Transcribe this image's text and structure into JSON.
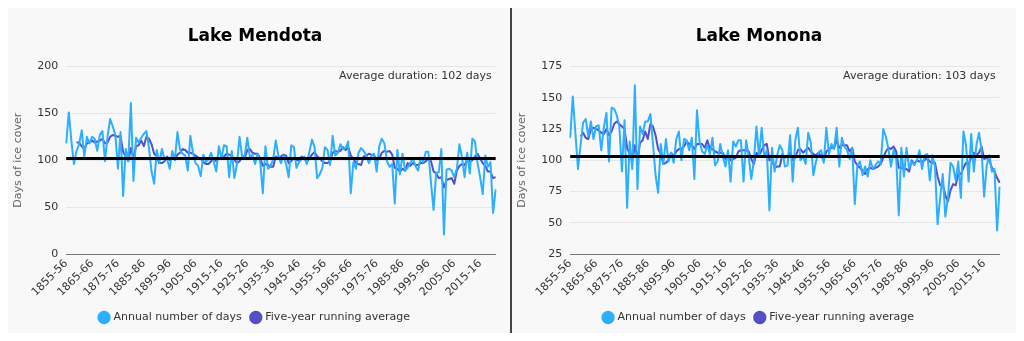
{
  "chart_data": [
    {
      "type": "line",
      "title": "Lake Mendota",
      "ylabel": "Days of ice cover",
      "ylim": [
        0,
        200
      ],
      "yticks": [
        0,
        50,
        100,
        150,
        200
      ],
      "grid": "y",
      "legend": "bottom",
      "categories": [
        "1855-56",
        null,
        null,
        null,
        null,
        null,
        null,
        null,
        null,
        null,
        "1865-66",
        null,
        null,
        null,
        null,
        null,
        null,
        null,
        null,
        null,
        "1875-76",
        null,
        null,
        null,
        null,
        null,
        null,
        null,
        null,
        null,
        "1885-86",
        null,
        null,
        null,
        null,
        null,
        null,
        null,
        null,
        null,
        "1895-96",
        null,
        null,
        null,
        null,
        null,
        null,
        null,
        null,
        null,
        "1905-06",
        null,
        null,
        null,
        null,
        null,
        null,
        null,
        null,
        null,
        "1915-16",
        null,
        null,
        null,
        null,
        null,
        null,
        null,
        null,
        null,
        "1925-26",
        null,
        null,
        null,
        null,
        null,
        null,
        null,
        null,
        null,
        "1935-36",
        null,
        null,
        null,
        null,
        null,
        null,
        null,
        null,
        null,
        "1945-46",
        null,
        null,
        null,
        null,
        null,
        null,
        null,
        null,
        null,
        "1955-56",
        null,
        null,
        null,
        null,
        null,
        null,
        null,
        null,
        null,
        "1965-66",
        null,
        null,
        null,
        null,
        null,
        null,
        null,
        null,
        null,
        "1975-76",
        null,
        null,
        null,
        null,
        null,
        null,
        null,
        null,
        null,
        "1985-86",
        null,
        null,
        null,
        null,
        null,
        null,
        null,
        null,
        null,
        "1995-96",
        null,
        null,
        null,
        null,
        null,
        null,
        null,
        null,
        null,
        "2005-06",
        null,
        null,
        null,
        null,
        null,
        null,
        null,
        null,
        null,
        "2015-16",
        null,
        null,
        null,
        null,
        null,
        null
      ],
      "series": [
        {
          "name": "Annual number of days",
          "color": "#2caffe",
          "values": [
            118,
            151,
            121,
            96,
            110,
            117,
            132,
            104,
            125,
            118,
            125,
            123,
            110,
            127,
            131,
            99,
            126,
            144,
            136,
            127,
            91,
            130,
            62,
            112,
            99,
            161,
            78,
            124,
            119,
            124,
            128,
            131,
            113,
            88,
            75,
            111,
            97,
            112,
            101,
            101,
            91,
            110,
            100,
            130,
            111,
            107,
            105,
            89,
            126,
            108,
            97,
            94,
            83,
            106,
            98,
            101,
            108,
            99,
            88,
            115,
            102,
            116,
            115,
            82,
            110,
            81,
            96,
            125,
            104,
            105,
            124,
            103,
            106,
            96,
            107,
            98,
            65,
            115,
            91,
            94,
            101,
            121,
            105,
            97,
            105,
            96,
            82,
            116,
            114,
            92,
            98,
            101,
            104,
            96,
            109,
            122,
            114,
            81,
            85,
            92,
            114,
            111,
            95,
            126,
            105,
            108,
            117,
            112,
            113,
            120,
            65,
            98,
            91,
            108,
            113,
            110,
            105,
            97,
            105,
            107,
            88,
            115,
            123,
            118,
            99,
            93,
            96,
            54,
            111,
            85,
            107,
            89,
            92,
            97,
            102,
            94,
            89,
            103,
            98,
            109,
            109,
            76,
            47,
            87,
            87,
            112,
            21,
            90,
            91,
            89,
            82,
            91,
            117,
            103,
            82,
            108,
            86,
            123,
            120,
            97,
            82,
            64,
            105,
            93,
            98,
            44,
            69
          ]
        },
        {
          "name": "Five-year running average",
          "color": "#544fc5",
          "values": [
            null,
            null,
            null,
            null,
            119,
            119,
            115,
            112,
            118,
            119,
            121,
            119,
            120,
            121,
            123,
            118,
            119,
            125,
            127,
            126,
            125,
            126,
            109,
            104,
            99,
            113,
            102,
            115,
            116,
            121,
            115,
            125,
            123,
            117,
            107,
            104,
            97,
            97,
            99,
            104,
            100,
            103,
            101,
            106,
            108,
            112,
            111,
            108,
            108,
            107,
            105,
            103,
            102,
            98,
            96,
            96,
            99,
            102,
            99,
            102,
            102,
            104,
            107,
            106,
            105,
            101,
            97,
            99,
            103,
            102,
            111,
            112,
            108,
            107,
            107,
            102,
            94,
            96,
            95,
            93,
            93,
            104,
            102,
            104,
            106,
            105,
            97,
            99,
            103,
            100,
            100,
            104,
            102,
            98,
            102,
            106,
            109,
            104,
            102,
            99,
            97,
            97,
            99,
            108,
            110,
            109,
            110,
            114,
            111,
            114,
            105,
            102,
            97,
            96,
            95,
            104,
            105,
            107,
            106,
            105,
            100,
            102,
            108,
            110,
            109,
            110,
            106,
            92,
            91,
            88,
            91,
            89,
            97,
            94,
            97,
            95,
            95,
            97,
            97,
            99,
            102,
            99,
            88,
            86,
            81,
            82,
            71,
            79,
            80,
            81,
            75,
            89,
            94,
            96,
            95,
            100,
            99,
            100,
            104,
            107,
            102,
            97,
            94,
            88,
            88,
            81,
            82
          ]
        }
      ],
      "ref_lines": [
        {
          "axis": "y",
          "value": 102,
          "color": "#000000"
        }
      ],
      "annotations": [
        "Average duration: 102 days"
      ]
    },
    {
      "type": "line",
      "title": "Lake Monona",
      "ylabel": "Days of ice cover",
      "ylim": [
        25,
        175
      ],
      "yticks": [
        25,
        50,
        75,
        100,
        125,
        150,
        175
      ],
      "grid": "y",
      "legend": "bottom",
      "categories": [
        "1855-56",
        null,
        null,
        null,
        null,
        null,
        null,
        null,
        null,
        null,
        "1865-66",
        null,
        null,
        null,
        null,
        null,
        null,
        null,
        null,
        null,
        "1875-76",
        null,
        null,
        null,
        null,
        null,
        null,
        null,
        null,
        null,
        "1885-86",
        null,
        null,
        null,
        null,
        null,
        null,
        null,
        null,
        null,
        "1895-96",
        null,
        null,
        null,
        null,
        null,
        null,
        null,
        null,
        null,
        "1905-06",
        null,
        null,
        null,
        null,
        null,
        null,
        null,
        null,
        null,
        "1915-16",
        null,
        null,
        null,
        null,
        null,
        null,
        null,
        null,
        null,
        "1925-26",
        null,
        null,
        null,
        null,
        null,
        null,
        null,
        null,
        null,
        "1935-36",
        null,
        null,
        null,
        null,
        null,
        null,
        null,
        null,
        null,
        "1945-46",
        null,
        null,
        null,
        null,
        null,
        null,
        null,
        null,
        null,
        "1955-56",
        null,
        null,
        null,
        null,
        null,
        null,
        null,
        null,
        null,
        "1965-66",
        null,
        null,
        null,
        null,
        null,
        null,
        null,
        null,
        null,
        "1975-76",
        null,
        null,
        null,
        null,
        null,
        null,
        null,
        null,
        null,
        "1985-86",
        null,
        null,
        null,
        null,
        null,
        null,
        null,
        null,
        null,
        "1995-96",
        null,
        null,
        null,
        null,
        null,
        null,
        null,
        null,
        null,
        "2005-06",
        null,
        null,
        null,
        null,
        null,
        null,
        null,
        null,
        null,
        "2015-16",
        null,
        null,
        null,
        null,
        null,
        null
      ],
      "series": [
        {
          "name": "Annual number of days",
          "color": "#2caffe",
          "values": [
            118,
            151,
            122,
            93,
            112,
            130,
            133,
            119,
            131,
            117,
            127,
            128,
            108,
            126,
            138,
            99,
            142,
            141,
            136,
            127,
            91,
            132,
            62,
            115,
            93,
            160,
            77,
            127,
            121,
            131,
            131,
            137,
            113,
            88,
            74,
            113,
            97,
            117,
            99,
            106,
            98,
            117,
            123,
            100,
            117,
            116,
            108,
            118,
            85,
            140,
            115,
            107,
            105,
            112,
            105,
            118,
            96,
            99,
            113,
            103,
            95,
            108,
            83,
            115,
            111,
            116,
            116,
            83,
            116,
            103,
            85,
            100,
            127,
            103,
            126,
            103,
            108,
            60,
            110,
            91,
            104,
            112,
            108,
            95,
            96,
            120,
            83,
            116,
            126,
            100,
            103,
            97,
            122,
            114,
            88,
            99,
            106,
            108,
            98,
            126,
            105,
            113,
            109,
            126,
            95,
            118,
            111,
            108,
            101,
            110,
            65,
            96,
            99,
            88,
            95,
            87,
            100,
            93,
            96,
            99,
            97,
            125,
            119,
            109,
            95,
            108,
            103,
            56,
            110,
            87,
            110,
            94,
            99,
            96,
            100,
            108,
            93,
            104,
            105,
            84,
            104,
            95,
            49,
            70,
            89,
            55,
            70,
            98,
            95,
            84,
            99,
            70,
            123,
            112,
            83,
            121,
            91,
            112,
            122,
            108,
            71,
            96,
            104,
            91,
            93,
            44,
            79
          ]
        },
        {
          "name": "Five-year running average",
          "color": "#544fc5",
          "values": [
            null,
            null,
            null,
            null,
            119,
            122,
            118,
            117,
            125,
            126,
            125,
            124,
            122,
            121,
            125,
            120,
            123,
            129,
            131,
            129,
            127,
            125,
            110,
            105,
            99,
            112,
            101,
            114,
            116,
            123,
            117,
            129,
            127,
            120,
            109,
            105,
            97,
            98,
            100,
            106,
            103,
            107,
            109,
            109,
            111,
            115,
            113,
            112,
            109,
            113,
            113,
            113,
            110,
            116,
            109,
            109,
            107,
            106,
            106,
            106,
            101,
            104,
            100,
            101,
            102,
            107,
            108,
            108,
            108,
            107,
            101,
            97,
            106,
            104,
            108,
            112,
            113,
            100,
            101,
            94,
            95,
            95,
            105,
            102,
            103,
            106,
            100,
            102,
            108,
            109,
            106,
            108,
            110,
            107,
            105,
            104,
            106,
            103,
            100,
            107,
            109,
            110,
            110,
            116,
            110,
            112,
            112,
            112,
            107,
            110,
            99,
            96,
            94,
            92,
            89,
            93,
            94,
            93,
            94,
            95,
            97,
            102,
            107,
            110,
            109,
            111,
            107,
            94,
            94,
            93,
            93,
            91,
            100,
            97,
            100,
            99,
            99,
            100,
            102,
            99,
            98,
            98,
            87,
            80,
            81,
            72,
            67,
            76,
            81,
            80,
            89,
            89,
            94,
            98,
            97,
            102,
            106,
            104,
            106,
            111,
            101,
            102,
            100,
            94,
            91,
            86,
            82
          ]
        }
      ],
      "ref_lines": [
        {
          "axis": "y",
          "value": 103,
          "color": "#000000"
        }
      ],
      "annotations": [
        "Average duration: 103 days"
      ]
    }
  ]
}
